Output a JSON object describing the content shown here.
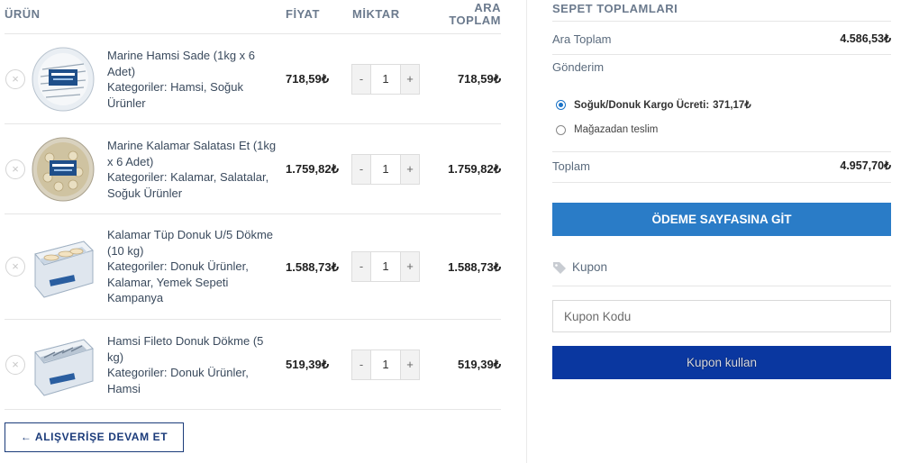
{
  "cart": {
    "headers": {
      "product": "ÜRÜN",
      "price": "FİYAT",
      "quantity": "MİKTAR",
      "subtotal_line1": "ARA",
      "subtotal_line2": "TOPLAM"
    },
    "items": [
      {
        "name": "Marine Hamsi Sade (1kg x 6 Adet)",
        "categories": "Kategoriler: Hamsi, Soğuk Ürünler",
        "price": "718,59₺",
        "quantity": "1",
        "subtotal": "718,59₺"
      },
      {
        "name": "Marine Kalamar Salatası Et (1kg x 6 Adet)",
        "categories": "Kategoriler: Kalamar, Salatalar, Soğuk Ürünler",
        "price": "1.759,82₺",
        "quantity": "1",
        "subtotal": "1.759,82₺"
      },
      {
        "name": "Kalamar Tüp Donuk U/5 Dökme (10 kg)",
        "categories": "Kategoriler: Donuk Ürünler, Kalamar, Yemek Sepeti Kampanya",
        "price": "1.588,73₺",
        "quantity": "1",
        "subtotal": "1.588,73₺"
      },
      {
        "name": "Hamsi Fileto Donuk Dökme (5 kg)",
        "categories": "Kategoriler: Donuk Ürünler, Hamsi",
        "price": "519,39₺",
        "quantity": "1",
        "subtotal": "519,39₺"
      }
    ],
    "remove_symbol": "×",
    "minus_symbol": "-",
    "plus_symbol": "+",
    "continue_label": "← ALIŞVERİŞE DEVAM ET"
  },
  "totals": {
    "title": "SEPET TOPLAMLARI",
    "subtotal_label": "Ara Toplam",
    "subtotal_value": "4.586,53₺",
    "shipping_label": "Gönderim",
    "shipping_options": [
      {
        "label": "Soğuk/Donuk Kargo Ücreti:",
        "price": "371,17₺",
        "selected": true
      },
      {
        "label": "Mağazadan teslim",
        "price": "",
        "selected": false
      }
    ],
    "total_label": "Toplam",
    "total_value": "4.957,70₺",
    "checkout_label": "ÖDEME SAYFASINA GİT"
  },
  "coupon": {
    "heading": "Kupon",
    "placeholder": "Kupon Kodu",
    "button_label": "Kupon kullan"
  },
  "colors": {
    "accent_blue": "#2a7cc7",
    "dark_blue": "#0a37a0",
    "outline_blue": "#1b3b7a"
  }
}
